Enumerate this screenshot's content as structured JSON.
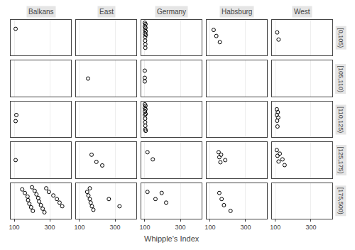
{
  "chart_data": {
    "type": "scatter",
    "xlabel": "Whipple's Index",
    "columns": [
      "Balkans",
      "East",
      "Germany",
      "Habsburg",
      "West"
    ],
    "rows": [
      "[0,105)",
      "[105,110)",
      "[110,125)",
      "[125,175)",
      "[175,500)"
    ],
    "xlim": [
      80,
      420
    ],
    "xticks": [
      100,
      300
    ],
    "ylim": [
      0,
      1
    ],
    "tick_labels": "x",
    "grid": true,
    "color": "black",
    "marker": "circle-open",
    "panels": [
      {
        "column": "Balkans",
        "row": "[0,105)",
        "x": [
          108
        ],
        "y": [
          0.75
        ]
      },
      {
        "column": "East",
        "row": "[0,105)",
        "x": [],
        "y": []
      },
      {
        "column": "Germany",
        "row": "[0,105)",
        "x": [
          100,
          100,
          101,
          101,
          102,
          102,
          103,
          103,
          104,
          104,
          105,
          106
        ],
        "y": [
          0.92,
          0.82,
          0.72,
          0.62,
          0.52,
          0.42,
          0.32,
          0.22,
          0.88,
          0.78,
          0.68,
          0.58
        ]
      },
      {
        "column": "Habsburg",
        "row": "[0,105)",
        "x": [
          120,
          135,
          155
        ],
        "y": [
          0.72,
          0.55,
          0.38
        ]
      },
      {
        "column": "West",
        "row": "[0,105)",
        "x": [
          110,
          118
        ],
        "y": [
          0.65,
          0.45
        ]
      },
      {
        "column": "Balkans",
        "row": "[105,110)",
        "x": [],
        "y": []
      },
      {
        "column": "East",
        "row": "[105,110)",
        "x": [
          148
        ],
        "y": [
          0.5
        ]
      },
      {
        "column": "Germany",
        "row": "[105,110)",
        "x": [
          100,
          100,
          100
        ],
        "y": [
          0.72,
          0.52,
          0.42
        ]
      },
      {
        "column": "Habsburg",
        "row": "[105,110)",
        "x": [],
        "y": []
      },
      {
        "column": "West",
        "row": "[105,110)",
        "x": [],
        "y": []
      },
      {
        "column": "Balkans",
        "row": "[110,125)",
        "x": [
          108,
          112
        ],
        "y": [
          0.45,
          0.62
        ]
      },
      {
        "column": "East",
        "row": "[110,125)",
        "x": [],
        "y": []
      },
      {
        "column": "Germany",
        "row": "[110,125)",
        "x": [
          100,
          100,
          101,
          101,
          102,
          102,
          103,
          103,
          104,
          104,
          105,
          105
        ],
        "y": [
          0.92,
          0.82,
          0.72,
          0.62,
          0.52,
          0.42,
          0.32,
          0.22,
          0.88,
          0.78,
          0.18,
          0.65
        ]
      },
      {
        "column": "Habsburg",
        "row": "[110,125)",
        "x": [],
        "y": []
      },
      {
        "column": "West",
        "row": "[110,125)",
        "x": [
          108,
          108,
          110,
          112,
          114,
          116
        ],
        "y": [
          0.78,
          0.62,
          0.46,
          0.3,
          0.7,
          0.55
        ]
      },
      {
        "column": "Balkans",
        "row": "[125,175)",
        "x": [
          108
        ],
        "y": [
          0.5
        ]
      },
      {
        "column": "East",
        "row": "[125,175)",
        "x": [
          168,
          195,
          228
        ],
        "y": [
          0.65,
          0.45,
          0.35
        ]
      },
      {
        "column": "Germany",
        "row": "[125,175)",
        "x": [
          115,
          145
        ],
        "y": [
          0.72,
          0.52
        ]
      },
      {
        "column": "Habsburg",
        "row": "[125,175)",
        "x": [
          148,
          152,
          158,
          162,
          185
        ],
        "y": [
          0.72,
          0.58,
          0.44,
          0.65,
          0.5
        ]
      },
      {
        "column": "West",
        "row": "[125,175)",
        "x": [
          108,
          112,
          118,
          125,
          140,
          152
        ],
        "y": [
          0.78,
          0.62,
          0.46,
          0.68,
          0.52,
          0.36
        ]
      },
      {
        "column": "Balkans",
        "row": "[175,500)",
        "x": [
          145,
          160,
          175,
          178,
          185,
          195,
          205,
          200,
          215,
          225,
          235,
          240,
          250,
          260,
          270,
          280,
          295,
          320,
          340,
          355,
          370
        ],
        "y": [
          0.82,
          0.72,
          0.62,
          0.52,
          0.42,
          0.32,
          0.22,
          0.88,
          0.78,
          0.68,
          0.58,
          0.48,
          0.38,
          0.28,
          0.18,
          0.85,
          0.75,
          0.65,
          0.55,
          0.45,
          0.35
        ]
      },
      {
        "column": "East",
        "row": "[175,500)",
        "x": [
          143,
          150,
          158,
          163,
          170,
          178,
          158,
          265,
          325
        ],
        "y": [
          0.75,
          0.65,
          0.55,
          0.45,
          0.35,
          0.25,
          0.85,
          0.55,
          0.35
        ]
      },
      {
        "column": "Germany",
        "row": "[175,500)",
        "x": [
          115,
          160,
          195,
          220
        ],
        "y": [
          0.75,
          0.55,
          0.72,
          0.45
        ]
      },
      {
        "column": "Habsburg",
        "row": "[175,500)",
        "x": [
          152,
          165,
          178,
          215
        ],
        "y": [
          0.72,
          0.55,
          0.38,
          0.22
        ]
      },
      {
        "column": "West",
        "row": "[175,500)",
        "x": [],
        "y": []
      }
    ]
  }
}
